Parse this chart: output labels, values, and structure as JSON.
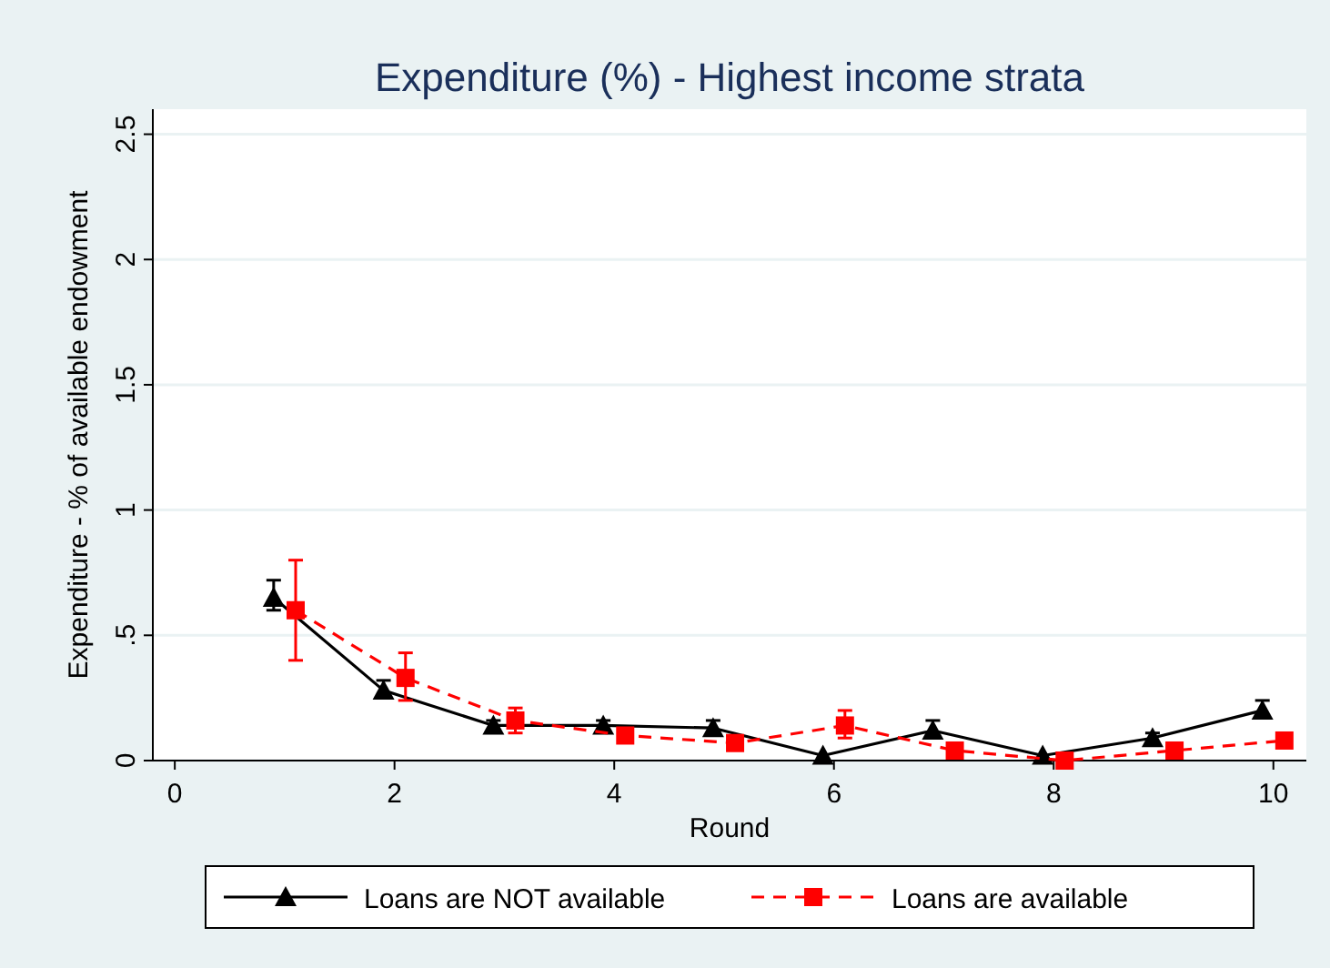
{
  "chart_data": {
    "type": "line",
    "title": "Expenditure (%) - Highest income strata",
    "xlabel": "Round",
    "ylabel": "Expenditure - % of available endowment",
    "xlim": [
      -0.2,
      10.3
    ],
    "xticks": [
      0,
      2,
      4,
      6,
      8,
      10
    ],
    "ylim": [
      0,
      2.6
    ],
    "yticks": [
      {
        "value": 0,
        "label": "0"
      },
      {
        "value": 0.5,
        "label": ".5"
      },
      {
        "value": 1,
        "label": "1"
      },
      {
        "value": 1.5,
        "label": "1.5"
      },
      {
        "value": 2,
        "label": "2"
      },
      {
        "value": 2.5,
        "label": "2.5"
      }
    ],
    "grid": "y",
    "legend": "bottom",
    "series": [
      {
        "name": "Loans are NOT available",
        "color": "#000000",
        "marker": "triangle",
        "line_style": "solid",
        "x": [
          0.9,
          1.9,
          2.9,
          3.9,
          4.9,
          5.9,
          6.9,
          7.9,
          8.9,
          9.9
        ],
        "values": [
          0.65,
          0.28,
          0.14,
          0.14,
          0.13,
          0.02,
          0.12,
          0.02,
          0.09,
          0.2
        ],
        "errors": [
          [
            0.6,
            0.72
          ],
          [
            0.25,
            0.32
          ],
          [
            0.12,
            0.16
          ],
          [
            0.12,
            0.16
          ],
          [
            0.1,
            0.16
          ],
          null,
          [
            0.09,
            0.16
          ],
          null,
          [
            0.07,
            0.11
          ],
          [
            0.17,
            0.24
          ]
        ]
      },
      {
        "name": "Loans are available",
        "color": "#ff0000",
        "marker": "square",
        "line_style": "dashed",
        "x": [
          1.1,
          2.1,
          3.1,
          4.1,
          5.1,
          6.1,
          7.1,
          8.1,
          9.1,
          10.1
        ],
        "values": [
          0.6,
          0.33,
          0.16,
          0.1,
          0.07,
          0.14,
          0.04,
          0.0,
          0.04,
          0.08
        ],
        "errors": [
          [
            0.4,
            0.8
          ],
          [
            0.24,
            0.43
          ],
          [
            0.11,
            0.21
          ],
          null,
          null,
          [
            0.09,
            0.2
          ],
          null,
          null,
          null,
          null
        ]
      }
    ]
  }
}
